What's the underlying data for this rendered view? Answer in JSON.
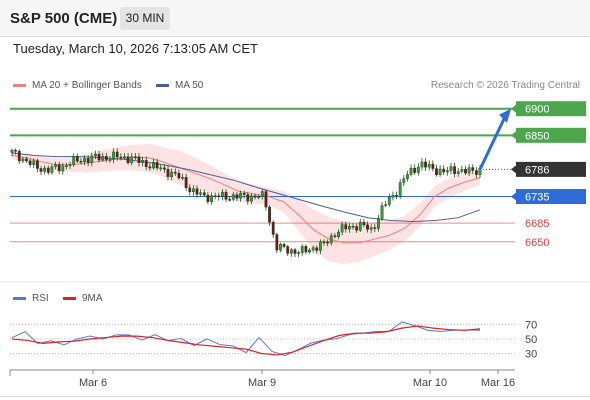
{
  "header": {
    "title": "S&P 500 (CME)",
    "timeframe": "30 MIN",
    "datetime": "Tuesday, March 10, 2026 7:13:05 AM CET"
  },
  "legend": {
    "ma20_label": "MA 20 + Bollinger Bands",
    "ma50_label": "MA 50",
    "copyright": "Research © 2026 Trading Central"
  },
  "rsi_legend": {
    "rsi_label": "RSI",
    "ma_label": "9MA"
  },
  "colors": {
    "ma20": "#f08080",
    "bollinger_fill": "#fde0e0",
    "ma50": "#4a5f9a",
    "resistance": "#4ca64c",
    "support_blue": "#2e6bd6",
    "support_red": "#e04040",
    "current": "#333333",
    "rsi": "#5577dd",
    "rsi_ma": "#e02020",
    "arrow": "#2e6bd6"
  },
  "chart_data": [
    {
      "type": "candlestick",
      "series": [
        {
          "name": "MA 20 + Bollinger Bands"
        },
        {
          "name": "MA 50"
        }
      ],
      "x_labels": [
        "Mar 6",
        "Mar 9",
        "Mar 10",
        "Mar 16"
      ],
      "ylim": [
        6612,
        6922
      ],
      "price_points": [
        6818,
        6805,
        6790,
        6785,
        6790,
        6800,
        6805,
        6808,
        6809,
        6810,
        6806,
        6798,
        6790,
        6782,
        6770,
        6745,
        6735,
        6735,
        6735,
        6735,
        6735,
        6735,
        6640,
        6635,
        6630,
        6638,
        6645,
        6668,
        6678,
        6681,
        6672,
        6718,
        6745,
        6778,
        6796,
        6788,
        6781,
        6786,
        6781,
        6786
      ],
      "ma20_points": [
        6812,
        6808,
        6800,
        6795,
        6795,
        6798,
        6802,
        6806,
        6808,
        6808,
        6800,
        6790,
        6780,
        6770,
        6758,
        6745,
        6740,
        6735,
        6725,
        6700,
        6672,
        6655,
        6648,
        6648,
        6655,
        6662,
        6675,
        6700,
        6735,
        6752,
        6762,
        6770
      ],
      "ma50_points": [
        6817,
        6812,
        6810,
        6810,
        6808,
        6805,
        6800,
        6793,
        6785,
        6775,
        6765,
        6752,
        6740,
        6728,
        6716,
        6705,
        6695,
        6690,
        6688,
        6690,
        6695,
        6710
      ],
      "levels": [
        {
          "value": 6900,
          "label": "6900",
          "kind": "resistance"
        },
        {
          "value": 6850,
          "label": "6850",
          "kind": "resistance"
        },
        {
          "value": 6786,
          "label": "6786",
          "kind": "current"
        },
        {
          "value": 6735,
          "label": "6735",
          "kind": "support_blue"
        },
        {
          "value": 6685,
          "label": "6685",
          "kind": "support_red"
        },
        {
          "value": 6650,
          "label": "6650",
          "kind": "support_red"
        }
      ]
    },
    {
      "type": "line",
      "series": [
        {
          "name": "RSI",
          "values": [
            50,
            56,
            45,
            52,
            42,
            48,
            55,
            50,
            52,
            55,
            53,
            58,
            45,
            50,
            42,
            48,
            40,
            44,
            35,
            50,
            30,
            28,
            35,
            42,
            50,
            55,
            56,
            54,
            60,
            62,
            72,
            68,
            66,
            62,
            58,
            60,
            64
          ]
        },
        {
          "name": "9MA",
          "values": [
            50,
            48,
            44,
            46,
            47,
            50,
            52,
            54,
            54,
            52,
            48,
            45,
            42,
            40,
            38,
            36,
            30,
            28,
            32,
            40,
            48,
            55,
            58,
            58,
            60,
            65,
            68,
            65,
            63,
            62,
            64
          ]
        }
      ],
      "y_ticks": [
        70,
        50,
        30
      ],
      "ylim": [
        10,
        90
      ]
    }
  ]
}
